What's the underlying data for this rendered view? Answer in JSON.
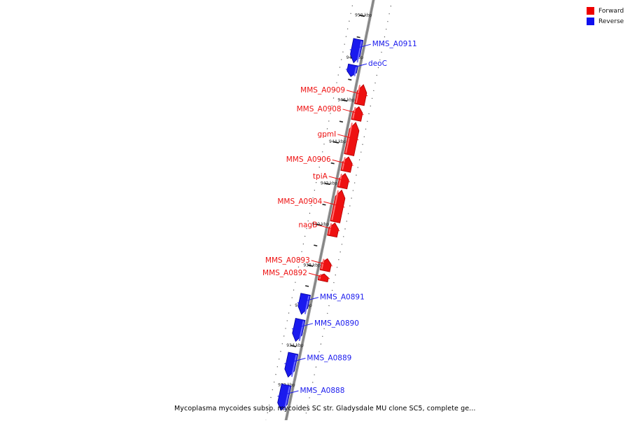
{
  "legend": {
    "items": [
      {
        "label": "Forward",
        "color": "#ff0000"
      },
      {
        "label": "Reverse",
        "color": "#0000ff"
      }
    ]
  },
  "caption": "Mycoplasma mycoides subsp. mycoides SC str. Gladysdale MU clone SC5, complete ge...",
  "axis": {
    "ticks": [
      {
        "kbp": 950,
        "label": "950 kbp"
      },
      {
        "kbp": 948,
        "label": "948 kbp"
      },
      {
        "kbp": 946,
        "label": "946 kbp"
      },
      {
        "kbp": 944,
        "label": "944 kbp"
      },
      {
        "kbp": 942,
        "label": "942 kbp"
      },
      {
        "kbp": 940,
        "label": "940 kbp"
      },
      {
        "kbp": 938,
        "label": "938 kbp"
      },
      {
        "kbp": 936,
        "label": "936 kbp"
      },
      {
        "kbp": 934,
        "label": "934 kbp"
      },
      {
        "kbp": 932,
        "label": "932 kbp"
      }
    ]
  },
  "colors": {
    "forward": "#ee1111",
    "reverse": "#1a1aee",
    "backbone": "#808080"
  },
  "genes": [
    {
      "name": "MMS_A0911",
      "strand": "reverse",
      "start": 947.8,
      "end": 948.9
    },
    {
      "name": "deoC",
      "strand": "reverse",
      "start": 947.15,
      "end": 947.7
    },
    {
      "name": "MMS_A0909",
      "strand": "forward",
      "start": 945.95,
      "end": 946.9
    },
    {
      "name": "MMS_A0908",
      "strand": "forward",
      "start": 945.2,
      "end": 945.85
    },
    {
      "name": "gpmI",
      "strand": "forward",
      "start": 943.55,
      "end": 945.1
    },
    {
      "name": "MMS_A0906",
      "strand": "forward",
      "start": 942.75,
      "end": 943.45
    },
    {
      "name": "tpiA",
      "strand": "forward",
      "start": 941.95,
      "end": 942.65
    },
    {
      "name": "MMS_A0904",
      "strand": "forward",
      "start": 940.3,
      "end": 941.85
    },
    {
      "name": "nagB",
      "strand": "forward",
      "start": 939.6,
      "end": 940.25
    },
    {
      "name": "MMS_A0893",
      "strand": "forward",
      "start": 937.9,
      "end": 938.5
    },
    {
      "name": "MMS_A0892",
      "strand": "forward",
      "start": 937.4,
      "end": 937.75
    },
    {
      "name": "MMS_A0891",
      "strand": "reverse",
      "start": 935.6,
      "end": 936.6
    },
    {
      "name": "MMS_A0890",
      "strand": "reverse",
      "start": 934.25,
      "end": 935.35
    },
    {
      "name": "MMS_A0889",
      "strand": "reverse",
      "start": 932.45,
      "end": 933.65
    },
    {
      "name": "MMS_A0888",
      "strand": "reverse",
      "start": 930.75,
      "end": 932.05
    }
  ]
}
